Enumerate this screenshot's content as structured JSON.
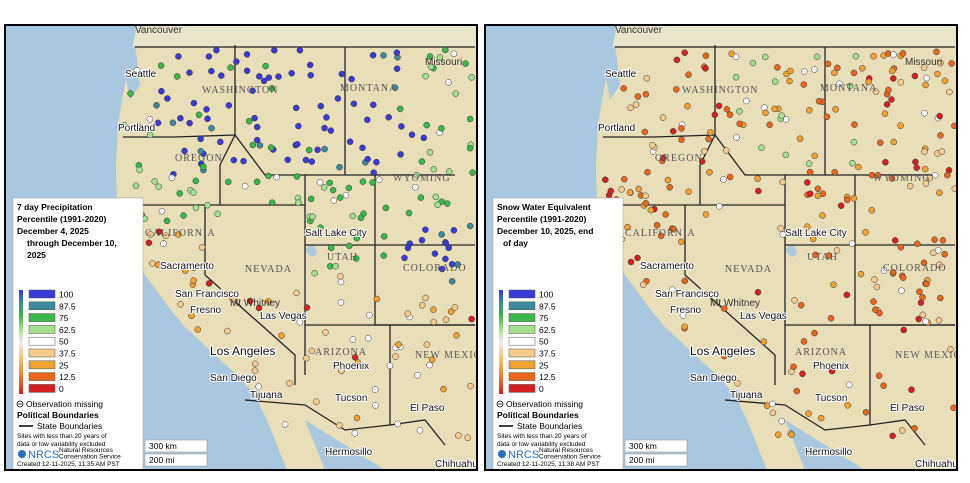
{
  "places": {
    "vancouver": "Vancouver",
    "seattle": "Seattle",
    "washington": "WASHINGTON",
    "montana": "MONTANA",
    "portland": "Portland",
    "oregon": "OREGON",
    "wyoming": "WYOMING",
    "california": "CALIFORNIA",
    "nevada": "NEVADA",
    "sacramento": "Sacramento",
    "san_francisco": "San Francisco",
    "fresno": "Fresno",
    "mt_whitney": "Mt Whitney",
    "las_vegas": "Las Vegas",
    "los_angeles": "Los Angeles",
    "san_diego": "San Diego",
    "tijuana": "Tijuana",
    "salt_lake": "Salt Lake City",
    "utah": "UTAH",
    "colorado": "COLORADO",
    "arizona": "ARIZONA",
    "phoenix": "Phoenix",
    "tucson": "Tucson",
    "new_mexico": "NEW MEXICO",
    "el_paso": "El Paso",
    "hermosillo": "Hermosillo",
    "chihuahua": "Chihuahua",
    "missouri": "Missouri"
  },
  "scale": [
    "300 km",
    "200 mi"
  ],
  "legend_entries": [
    {
      "label": "100",
      "color": "#3a3ad8"
    },
    {
      "label": "87.5",
      "color": "#3f8a9c"
    },
    {
      "label": "75",
      "color": "#3cb84a"
    },
    {
      "label": "62.5",
      "color": "#a4e08e"
    },
    {
      "label": "50",
      "color": "#ffffff"
    },
    {
      "label": "37.5",
      "color": "#f6cc8e"
    },
    {
      "label": "25",
      "color": "#f0a232"
    },
    {
      "label": "12.5",
      "color": "#e8671e"
    },
    {
      "label": "0",
      "color": "#d42222"
    }
  ],
  "panels": [
    {
      "title": [
        "7 day Precipitation",
        "Percentile (1991-2020)",
        "December 4, 2025",
        "through December 10,",
        "2025"
      ],
      "missing": "Observation missing",
      "political": "Political Boundaries",
      "state": "State Boundaries",
      "note": [
        "Sites with less than 20 years of",
        "data or low variability excluded"
      ],
      "agency": "NRCS",
      "agency_full": [
        "Natural Resources",
        "Conservation Service"
      ],
      "created": "Created 12-11-2025, 11:35 AM PST"
    },
    {
      "title": [
        "Snow Water Equivalent",
        "Percentile (1991-2020)",
        "December 10, 2025, end",
        "of day"
      ],
      "missing": "Observation missing",
      "political": "Political Boundaries",
      "state": "State Boundaries",
      "note": [
        "Sites with less than 20 years of",
        "data or low variability excluded"
      ],
      "agency": "NRCS",
      "agency_full": [
        "Natural Resources",
        "Conservation Service"
      ],
      "created": "Created 12-11-2025, 11:38 AM PST"
    }
  ]
}
